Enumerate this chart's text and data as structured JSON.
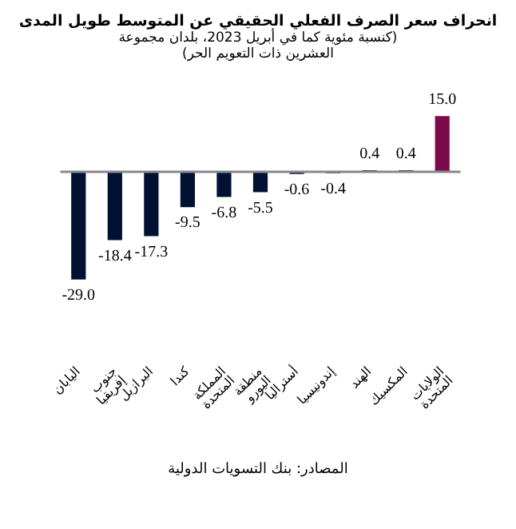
{
  "chart_data": {
    "type": "bar",
    "title": "انحراف سعر الصرف الفعلي الحقيقي عن المتوسط طويل المدى",
    "subtitle": "(كنسبة مئوية كما في أبريل 2023، بلدان مجموعة العشرين ذات التعويم الحر)",
    "categories": [
      "اليابان",
      "جنوب إفريقيا",
      "البرازيل",
      "كندا",
      "المملكة المتحدة",
      "منطقة اليورو",
      "أستراليا",
      "إندونيسيا",
      "الهند",
      "المكسيك",
      "الولايات المتحدة"
    ],
    "values": [
      -29.0,
      -18.4,
      -17.3,
      -9.5,
      -6.8,
      -5.5,
      -0.6,
      -0.4,
      0.4,
      0.4,
      15.0
    ],
    "colors": [
      "#001133",
      "#001133",
      "#001133",
      "#001133",
      "#001133",
      "#001133",
      "#001133",
      "#001133",
      "#001133",
      "#001133",
      "#7a0a4a"
    ],
    "value_labels": [
      "-29.0",
      "-18.4",
      "-17.3",
      "-9.5",
      "-6.8",
      "-5.5",
      "-0.6",
      "-0.4",
      "0.4",
      "0.4",
      "15.0"
    ],
    "grid": false,
    "legend": false,
    "annotations": [
      "المصادر: بنك التسويات الدولية"
    ]
  }
}
